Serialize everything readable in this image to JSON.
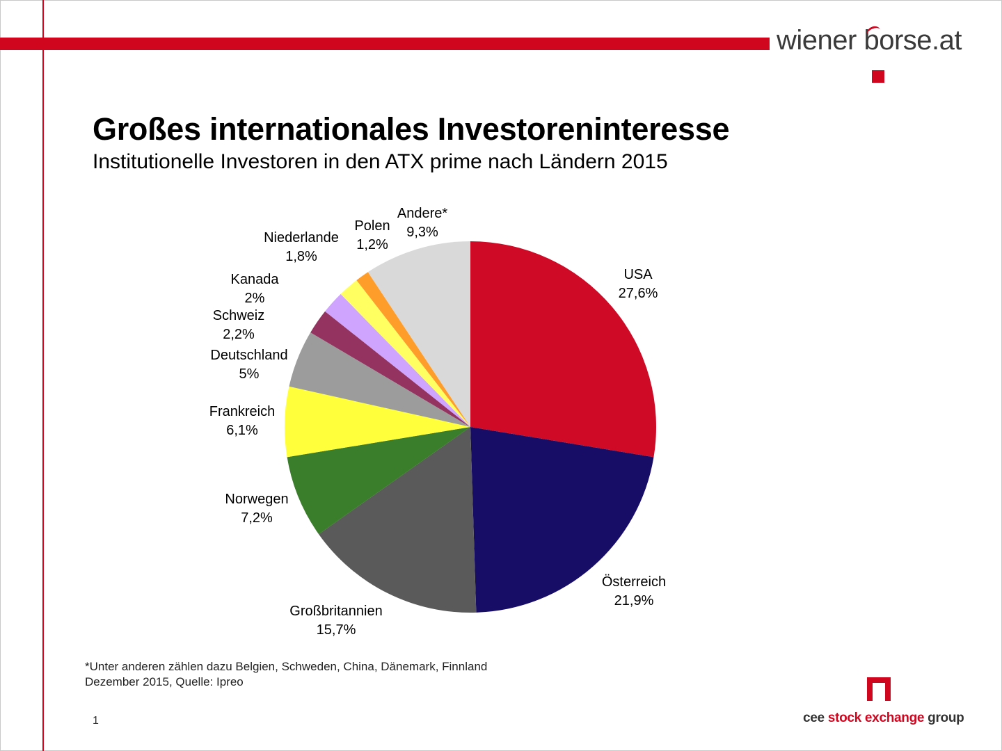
{
  "brand": {
    "logo_text": "wiener borse.at",
    "footer_brand": {
      "part1": "cee",
      "part2": "stock exchange",
      "part3": "group"
    }
  },
  "header": {
    "title": "Großes internationales Investoreninteresse",
    "subtitle": "Institutionelle Investoren in den ATX prime nach Ländern 2015"
  },
  "footer": {
    "note_line1": "*Unter anderen zählen dazu Belgien, Schweden, China, Dänemark, Finnland",
    "note_line2": "Dezember 2015, Quelle: Ipreo",
    "page_number": "1"
  },
  "colors": {
    "accent_red": "#d0061f"
  },
  "chart_data": {
    "type": "pie",
    "title": "",
    "start": "12 o'clock, clockwise",
    "slices": [
      {
        "name": "USA",
        "value": 27.6,
        "label": "27,6%",
        "color": "#cf0a26"
      },
      {
        "name": "Österreich",
        "value": 21.9,
        "label": "21,9%",
        "color": "#170c66"
      },
      {
        "name": "Großbritannien",
        "value": 15.7,
        "label": "15,7%",
        "color": "#5a5a5a"
      },
      {
        "name": "Norwegen",
        "value": 7.2,
        "label": "7,2%",
        "color": "#3a7d2a"
      },
      {
        "name": "Frankreich",
        "value": 6.1,
        "label": "6,1%",
        "color": "#ffff3c"
      },
      {
        "name": "Deutschland",
        "value": 5,
        "label": "5%",
        "color": "#9c9c9c"
      },
      {
        "name": "Schweiz",
        "value": 2.2,
        "label": "2,2%",
        "color": "#94335f"
      },
      {
        "name": "Kanada",
        "value": 2,
        "label": "2%",
        "color": "#cfa4ff"
      },
      {
        "name": "Niederlande",
        "value": 1.8,
        "label": "1,8%",
        "color": "#ffff62"
      },
      {
        "name": "Polen",
        "value": 1.2,
        "label": "1,2%",
        "color": "#ff9d2a"
      },
      {
        "name": "Andere*",
        "value": 9.3,
        "label": "9,3%",
        "color": "#d9d9d9"
      }
    ]
  }
}
